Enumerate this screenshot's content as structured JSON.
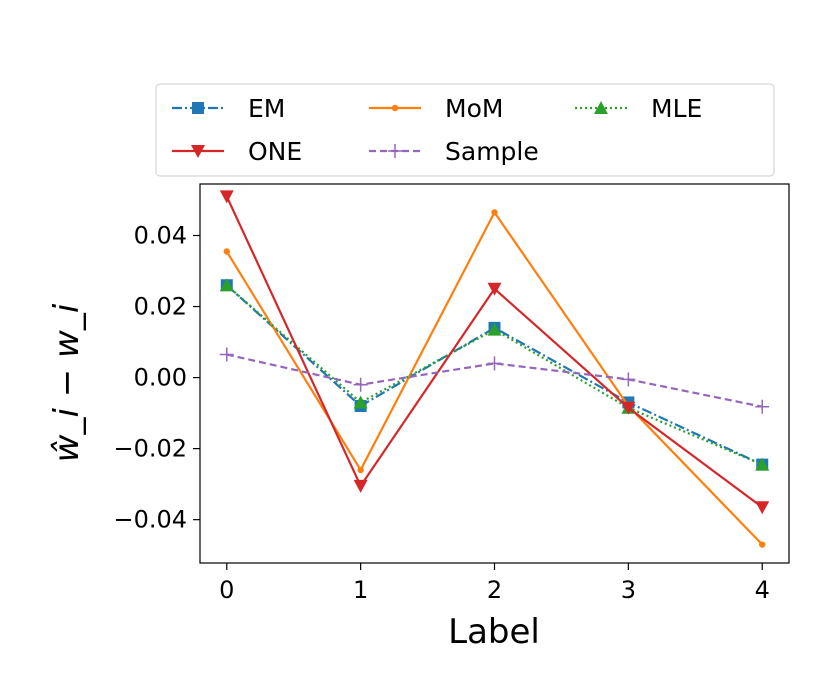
{
  "chart_data": {
    "type": "line",
    "title": "",
    "xlabel": "Label",
    "ylabel": "ŵ_i − w_i",
    "x": [
      0,
      1,
      2,
      3,
      4
    ],
    "xticks": [
      "0",
      "1",
      "2",
      "3",
      "4"
    ],
    "yticks": [
      -0.04,
      -0.02,
      0.0,
      0.02,
      0.04
    ],
    "ytick_labels": [
      "−0.04",
      "−0.02",
      "0.00",
      "0.02",
      "0.04"
    ],
    "xlim": [
      -0.2,
      4.2
    ],
    "ylim": [
      -0.0522,
      0.0545
    ],
    "legend_position": "top",
    "series": [
      {
        "name": "EM",
        "color": "#1f77b4",
        "dash": "10,3,2,3",
        "marker": "square",
        "values": [
          0.026,
          -0.008,
          0.014,
          -0.007,
          -0.0245
        ]
      },
      {
        "name": "MoM",
        "color": "#ff7f0e",
        "dash": "",
        "marker": "circle",
        "values": [
          0.0355,
          -0.026,
          0.0465,
          -0.008,
          -0.047
        ]
      },
      {
        "name": "MLE",
        "color": "#2ca02c",
        "dash": "2,3",
        "marker": "triangle-up",
        "values": [
          0.026,
          -0.007,
          0.0135,
          -0.0085,
          -0.0245
        ]
      },
      {
        "name": "ONE",
        "color": "#d62728",
        "dash": "",
        "marker": "triangle-down",
        "values": [
          0.051,
          -0.0305,
          0.025,
          -0.0085,
          -0.0365
        ]
      },
      {
        "name": "Sample",
        "color": "#9467bd",
        "dash": "7,4",
        "marker": "plus",
        "values": [
          0.0065,
          -0.002,
          0.004,
          -0.0005,
          -0.0082
        ]
      }
    ]
  }
}
